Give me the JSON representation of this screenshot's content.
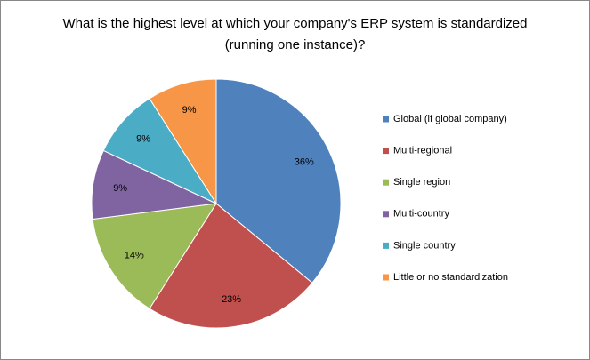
{
  "chart_data": {
    "type": "pie",
    "title": "What is the highest level at which your company's ERP system is standardized\n(running one instance)?",
    "categories": [
      "Global (if global company)",
      "Multi-regional",
      "Single region",
      "Multi-country",
      "Single country",
      "Little or no standardization"
    ],
    "values": [
      36,
      23,
      14,
      9,
      9,
      9
    ],
    "value_labels": [
      "36%",
      "23%",
      "14%",
      "9%",
      "9%",
      "9%"
    ],
    "colors": [
      "#4F81BD",
      "#C0504D",
      "#9BBB59",
      "#8064A2",
      "#4BACC6",
      "#F79646"
    ],
    "legend": "right"
  }
}
